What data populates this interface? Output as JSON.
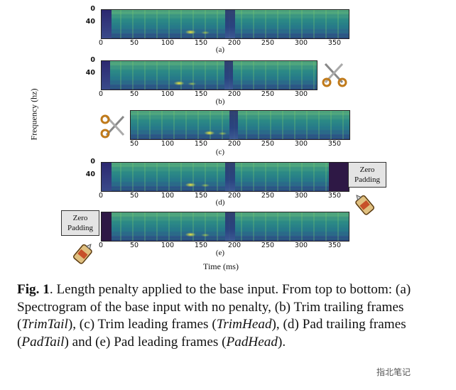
{
  "figure": {
    "ylabel": "Frequency (hz)",
    "xlabel": "Time (ms)",
    "zero_padding": "Zero Padding",
    "ticks_full": [
      "0",
      "50",
      "100",
      "150",
      "200",
      "250",
      "300",
      "350"
    ],
    "ticks_head": [
      "50",
      "100",
      "150",
      "200",
      "250",
      "300",
      "350"
    ],
    "ytick_top": "0",
    "ytick_mid": "40",
    "panels": {
      "a": "(a)",
      "b": "(b)",
      "c": "(c)",
      "d": "(d)",
      "e": "(e)"
    },
    "icons": [
      "scissors-icon",
      "glue-bottle-icon"
    ]
  },
  "caption": {
    "fig_label": "Fig. 1",
    "p1": ". Length penalty applied to the base input. From top to bottom: (a) Spectrogram of the base input with no penalty, (b) Trim trailing frames (",
    "trimtail": "TrimTail",
    "p2": "), (c) Trim leading frames (",
    "trimhead": "TrimHead",
    "p3": "), (d) Pad trailing frames (",
    "padtail": "PadTail",
    "p4": ") and (e) Pad leading frames (",
    "padhead": "PadHead",
    "p5": ")."
  },
  "watermark": "指北笔记"
}
